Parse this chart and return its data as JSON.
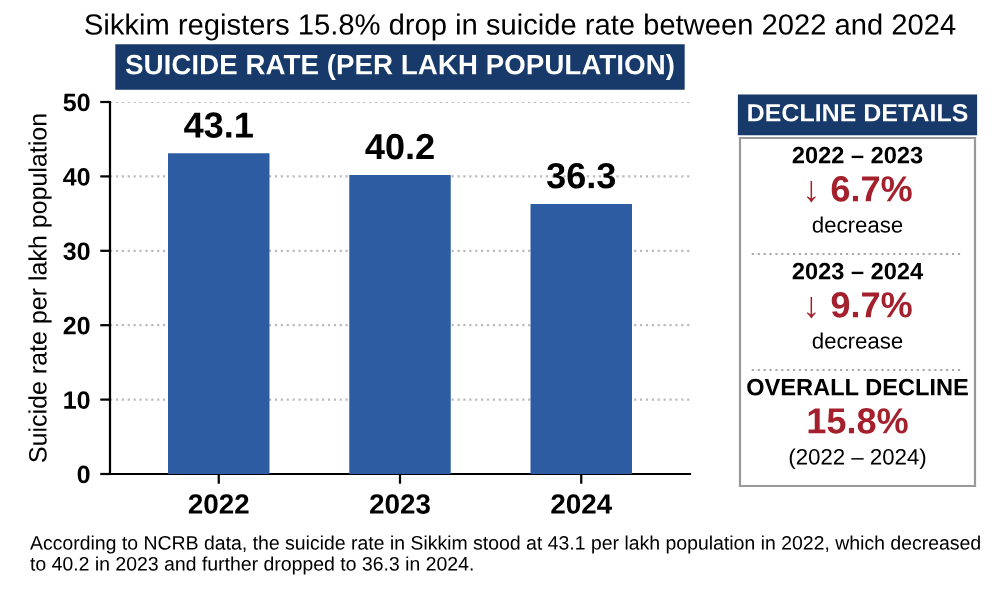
{
  "chart_data": [
    {
      "type": "bar",
      "title": "SUICIDE RATE (PER LAKH POPULATION)",
      "subtitle": "Sikkim registers 15.8% drop in suicide rate between 2022 and 2024",
      "ylabel": "Suicide rate per lakh population",
      "categories": [
        "2022",
        "2023",
        "2024"
      ],
      "values": [
        43.1,
        40.2,
        36.3
      ],
      "color": "#2e5ca3",
      "ylim": [
        0,
        50
      ],
      "yticks": [
        0,
        10,
        20,
        30,
        40,
        50
      ],
      "grid": "y",
      "data_labels": true,
      "legend": false,
      "annotations": [
        "According to NCRB data, the suicide rate in Sikkim stood at 43.1 per lakh population in 2022, which decreased to 40.2 in 2023 and further dropped to 36.3 in 2024."
      ]
    },
    {
      "type": "other",
      "title": "DECLINE DETAILS",
      "annotations": [
        "2022 – 2023",
        "↓ 6.7%",
        "decrease",
        "2023 – 2024",
        "↓ 9.7%",
        "decrease",
        "OVERALL DECLINE",
        "15.8%",
        "(2022 – 2024)"
      ]
    }
  ]
}
